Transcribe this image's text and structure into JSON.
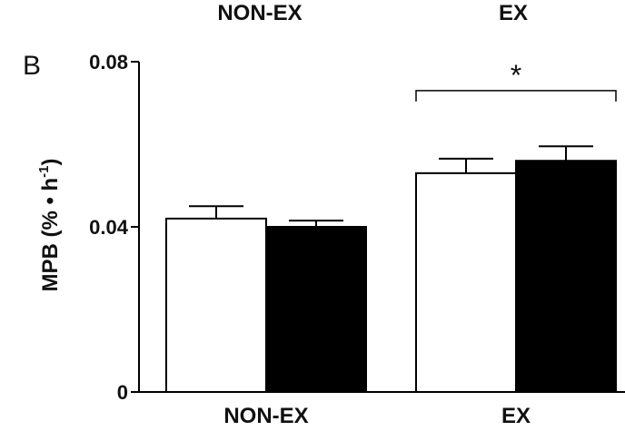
{
  "chart_data": {
    "type": "bar",
    "panel_label": "B",
    "top_cut_labels": [
      "NON-EX",
      "EX"
    ],
    "ylabel_main": "MPB (% • h",
    "ylabel_exp": "-1",
    "ylabel_close": ")",
    "ylim": [
      0,
      0.08
    ],
    "yticks": [
      {
        "value": 0,
        "label": "0"
      },
      {
        "value": 0.04,
        "label": "0.04"
      },
      {
        "value": 0.08,
        "label": "0.08"
      }
    ],
    "categories": [
      "NON-EX",
      "EX"
    ],
    "series": [
      {
        "fill": "#ffffff",
        "values": [
          0.042,
          0.053
        ],
        "errors": [
          0.003,
          0.0035
        ]
      },
      {
        "fill": "#000000",
        "values": [
          0.04,
          0.056
        ],
        "errors": [
          0.0015,
          0.0035
        ]
      }
    ],
    "annotation": {
      "text": "*",
      "category_index": 1,
      "y": 0.073
    },
    "grid": false,
    "legend": "none"
  }
}
